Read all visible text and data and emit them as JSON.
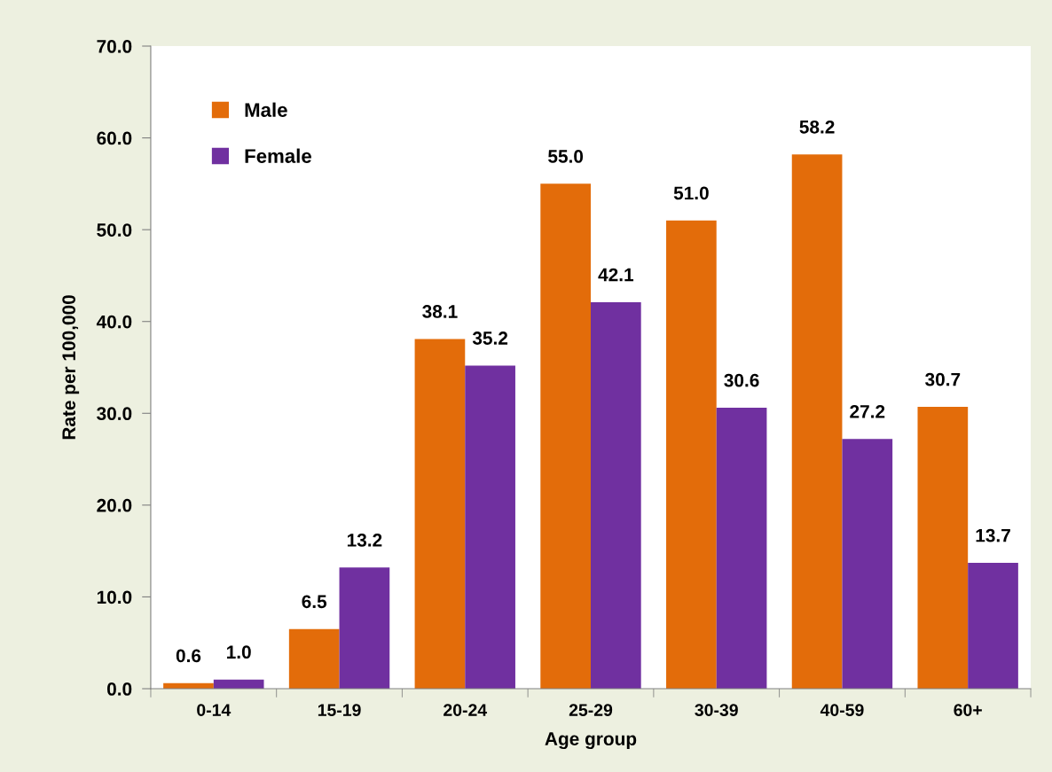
{
  "chart_data": {
    "type": "bar",
    "xlabel": "Age group",
    "ylabel": "Rate per 100,000",
    "categories": [
      "0-14",
      "15-19",
      "20-24",
      "25-29",
      "30-39",
      "40-59",
      "60+"
    ],
    "series": [
      {
        "name": "Male",
        "color": "#e36c0a",
        "values": [
          0.6,
          6.5,
          38.1,
          55.0,
          51.0,
          58.2,
          30.7
        ],
        "value_labels": [
          "0.6",
          "6.5",
          "38.1",
          "55.0",
          "51.0",
          "58.2",
          "30.7"
        ]
      },
      {
        "name": "Female",
        "color": "#7030a0",
        "values": [
          1.0,
          13.2,
          35.2,
          42.1,
          30.6,
          27.2,
          13.7
        ],
        "value_labels": [
          "1.0",
          "13.2",
          "35.2",
          "42.1",
          "30.6",
          "27.2",
          "13.7"
        ]
      }
    ],
    "ylim": [
      0,
      70
    ],
    "yticks": [
      {
        "value": 0,
        "label": "0.0"
      },
      {
        "value": 10,
        "label": "10.0"
      },
      {
        "value": 20,
        "label": "20.0"
      },
      {
        "value": 30,
        "label": "30.0"
      },
      {
        "value": 40,
        "label": "40.0"
      },
      {
        "value": 50,
        "label": "50.0"
      },
      {
        "value": 60,
        "label": "60.0"
      },
      {
        "value": 70,
        "label": "70.0"
      }
    ],
    "grid": false,
    "legend": "top left"
  }
}
